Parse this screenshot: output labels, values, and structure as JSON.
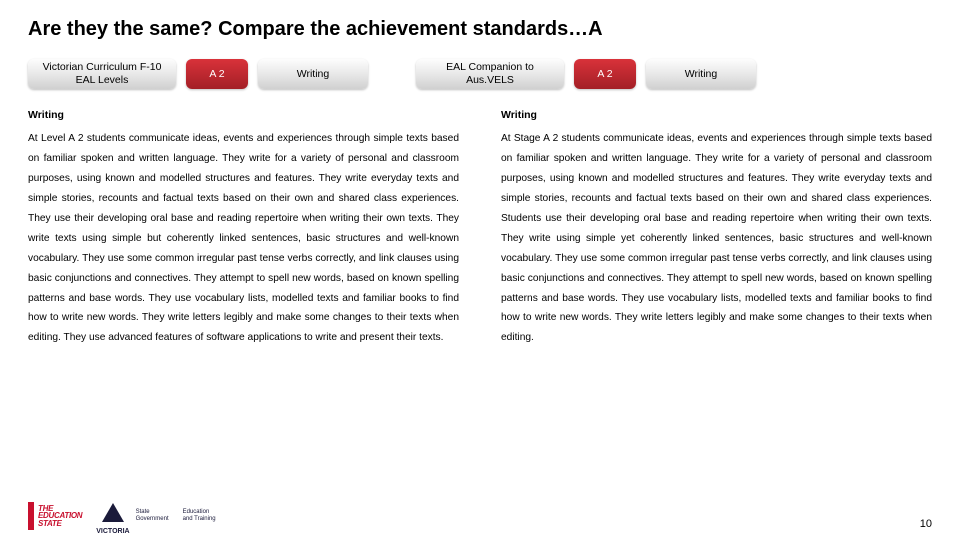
{
  "title": "Are they the same? Compare the achievement standards…A",
  "pills": {
    "left_curriculum": "Victorian Curriculum F-10\nEAL Levels",
    "left_level": "A 2",
    "left_mode": "Writing",
    "right_curriculum": "EAL Companion to\nAus.VELS",
    "right_level": "A 2",
    "right_mode": "Writing"
  },
  "left": {
    "heading": "Writing",
    "body": "At Level A 2 students communicate ideas, events and experiences through simple texts based on familiar spoken and written language. They write for a variety of personal and classroom purposes, using known and modelled structures and features. They write everyday texts and simple stories, recounts and factual texts based on their own and shared class experiences. They use their developing oral base and reading repertoire when writing their own texts. They write texts using simple but coherently linked sentences, basic structures and well-known vocabulary. They use some common irregular past tense verbs correctly, and link clauses using basic conjunctions and connectives. They attempt to spell new words, based on known spelling patterns and base words. They use vocabulary lists, modelled texts and familiar books to find how to write new words. They write letters legibly and make some changes to their texts when editing. They use advanced features of software applications to write and present their texts."
  },
  "right": {
    "heading": "Writing",
    "body": "At Stage A 2 students communicate ideas, events and experiences through simple texts based on familiar spoken and written language. They write for a variety of personal and classroom purposes, using known and modelled structures and features. They write everyday texts and simple stories, recounts and factual texts based on their own and shared class experiences. Students use their developing oral base and reading repertoire when writing their own  texts. They write using simple yet coherently linked sentences, basic structures and well-known vocabulary. They use some common irregular past tense verbs correctly, and link clauses using basic conjunctions and connectives. They attempt to spell new words, based on known spelling patterns and base words. They use vocabulary lists, modelled texts and familiar books to find how to write new words. They write letters legibly and make some changes to their texts when editing."
  },
  "footer": {
    "edu_state": "THE\nEDUCATION\nSTATE",
    "victoria": "VICTORIA",
    "dept": "State\nGovernment",
    "dept2": "Education\nand Training",
    "page": "10"
  },
  "colors": {
    "red": "#c8102e",
    "navy": "#1a1a3a"
  }
}
